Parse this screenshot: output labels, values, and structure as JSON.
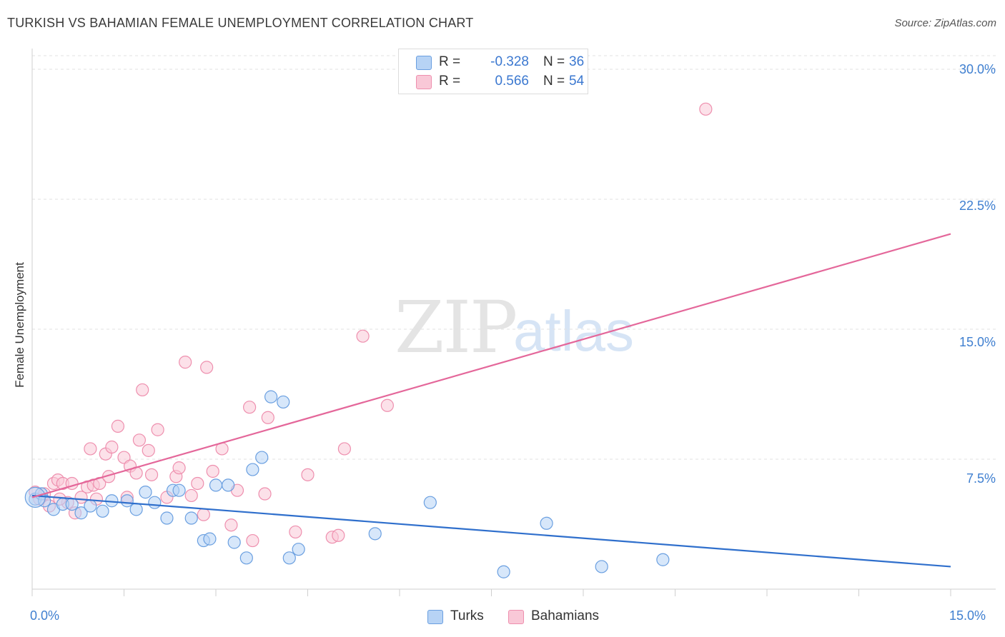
{
  "header": {
    "title": "TURKISH VS BAHAMIAN FEMALE UNEMPLOYMENT CORRELATION CHART",
    "source": "Source: ZipAtlas.com"
  },
  "watermark": {
    "zip": "ZIP",
    "atlas": "atlas"
  },
  "legend": {
    "turks": {
      "r_label": "R =",
      "r_value": "-0.328",
      "n_label": "N =",
      "n_value": "36"
    },
    "bahamians": {
      "r_label": "R =",
      "r_value": "0.566",
      "n_label": "N =",
      "n_value": "54"
    }
  },
  "bottom_legend": {
    "turks": "Turks",
    "bahamians": "Bahamians"
  },
  "colors": {
    "turks_fill": "#b7d3f5",
    "turks_stroke": "#6a9fe0",
    "turks_line": "#2f6fcc",
    "bahamians_fill": "#f9c8d7",
    "bahamians_stroke": "#ee8fae",
    "bahamians_line": "#e4679a",
    "axis_text": "#3f7fd0",
    "grid": "#e2e2e2"
  },
  "chart_data": {
    "type": "scatter",
    "title": "TURKISH VS BAHAMIAN FEMALE UNEMPLOYMENT CORRELATION CHART",
    "xlabel": "",
    "ylabel": "Female Unemployment",
    "xlim": [
      0,
      15
    ],
    "ylim": [
      0,
      30
    ],
    "x_tick_labels": [
      "0.0%",
      "15.0%"
    ],
    "y_ticks": [
      7.5,
      15.0,
      22.5,
      30.0
    ],
    "y_tick_labels": [
      "7.5%",
      "15.0%",
      "22.5%",
      "30.0%"
    ],
    "series": [
      {
        "name": "Turks",
        "r": -0.328,
        "n": 36,
        "trend": {
          "x": [
            0,
            15
          ],
          "y": [
            5.4,
            1.3
          ]
        },
        "points": [
          [
            0.05,
            5.2
          ],
          [
            0.15,
            5.5
          ],
          [
            0.2,
            5.1
          ],
          [
            0.35,
            4.6
          ],
          [
            0.5,
            4.9
          ],
          [
            0.65,
            4.9
          ],
          [
            0.8,
            4.4
          ],
          [
            0.95,
            4.8
          ],
          [
            1.15,
            4.5
          ],
          [
            1.3,
            5.1
          ],
          [
            1.55,
            5.1
          ],
          [
            1.7,
            4.6
          ],
          [
            1.85,
            5.6
          ],
          [
            2.0,
            5.0
          ],
          [
            2.2,
            4.1
          ],
          [
            2.3,
            5.7
          ],
          [
            2.4,
            5.7
          ],
          [
            2.6,
            4.1
          ],
          [
            2.8,
            2.8
          ],
          [
            2.9,
            2.9
          ],
          [
            3.0,
            6.0
          ],
          [
            3.2,
            6.0
          ],
          [
            3.3,
            2.7
          ],
          [
            3.5,
            1.8
          ],
          [
            3.6,
            6.9
          ],
          [
            3.75,
            7.6
          ],
          [
            3.9,
            11.1
          ],
          [
            4.1,
            10.8
          ],
          [
            4.2,
            1.8
          ],
          [
            4.35,
            2.3
          ],
          [
            5.6,
            3.2
          ],
          [
            6.5,
            5.0
          ],
          [
            7.7,
            1.0
          ],
          [
            8.4,
            3.8
          ],
          [
            9.3,
            1.3
          ],
          [
            10.3,
            1.7
          ]
        ]
      },
      {
        "name": "Bahamians",
        "r": 0.566,
        "n": 54,
        "trend": {
          "x": [
            0,
            15
          ],
          "y": [
            5.3,
            20.5
          ]
        },
        "points": [
          [
            0.05,
            5.6
          ],
          [
            0.12,
            5.2
          ],
          [
            0.2,
            5.5
          ],
          [
            0.28,
            4.8
          ],
          [
            0.35,
            6.1
          ],
          [
            0.42,
            6.3
          ],
          [
            0.5,
            6.1
          ],
          [
            0.58,
            5.0
          ],
          [
            0.65,
            6.1
          ],
          [
            0.7,
            4.4
          ],
          [
            0.8,
            5.3
          ],
          [
            0.9,
            5.9
          ],
          [
            0.95,
            8.1
          ],
          [
            1.0,
            6.0
          ],
          [
            1.05,
            5.2
          ],
          [
            1.1,
            6.1
          ],
          [
            1.2,
            7.8
          ],
          [
            1.3,
            8.2
          ],
          [
            1.4,
            9.4
          ],
          [
            1.5,
            7.6
          ],
          [
            1.55,
            5.3
          ],
          [
            1.6,
            7.1
          ],
          [
            1.7,
            6.7
          ],
          [
            1.75,
            8.6
          ],
          [
            1.8,
            11.5
          ],
          [
            1.9,
            8.0
          ],
          [
            1.95,
            6.6
          ],
          [
            2.05,
            9.2
          ],
          [
            2.2,
            5.3
          ],
          [
            2.35,
            6.5
          ],
          [
            2.4,
            7.0
          ],
          [
            2.5,
            13.1
          ],
          [
            2.6,
            5.4
          ],
          [
            2.7,
            6.1
          ],
          [
            2.8,
            4.3
          ],
          [
            2.85,
            12.8
          ],
          [
            2.95,
            6.8
          ],
          [
            3.1,
            8.1
          ],
          [
            3.25,
            3.7
          ],
          [
            3.35,
            5.7
          ],
          [
            3.55,
            10.5
          ],
          [
            3.6,
            2.8
          ],
          [
            3.8,
            5.5
          ],
          [
            3.85,
            9.9
          ],
          [
            4.3,
            3.3
          ],
          [
            4.5,
            6.6
          ],
          [
            4.9,
            3.0
          ],
          [
            5.0,
            3.1
          ],
          [
            5.1,
            8.1
          ],
          [
            5.4,
            14.6
          ],
          [
            5.8,
            10.6
          ],
          [
            11.0,
            27.7
          ],
          [
            0.45,
            5.2
          ],
          [
            1.25,
            6.5
          ]
        ]
      }
    ]
  }
}
